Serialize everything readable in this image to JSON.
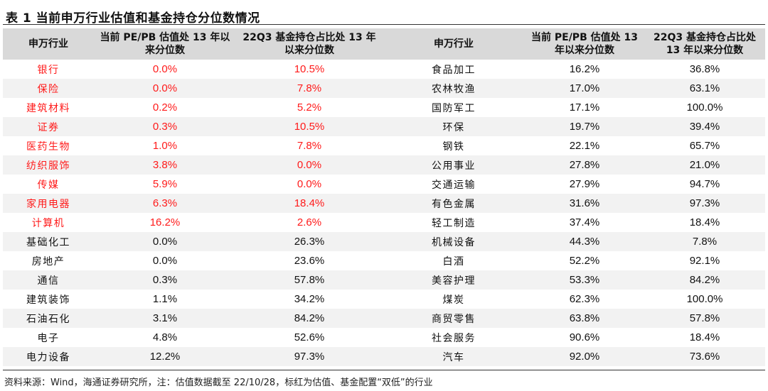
{
  "title": "表 1 当前申万行业估值和基金持仓分位数情况",
  "headers": {
    "industry": "申万行业",
    "pe_pb": "当前 PE/PB 估值处 13 年以来分位数",
    "fund": "22Q3 基金持仓占比处 13 年以来分位数"
  },
  "left_rows": [
    {
      "name": "银行",
      "pe": "0.0%",
      "fund": "10.5%",
      "red": true
    },
    {
      "name": "保险",
      "pe": "0.0%",
      "fund": "7.8%",
      "red": true
    },
    {
      "name": "建筑材料",
      "pe": "0.2%",
      "fund": "5.2%",
      "red": true
    },
    {
      "name": "证券",
      "pe": "0.3%",
      "fund": "10.5%",
      "red": true
    },
    {
      "name": "医药生物",
      "pe": "1.0%",
      "fund": "7.8%",
      "red": true
    },
    {
      "name": "纺织服饰",
      "pe": "3.8%",
      "fund": "0.0%",
      "red": true
    },
    {
      "name": "传媒",
      "pe": "5.9%",
      "fund": "0.0%",
      "red": true
    },
    {
      "name": "家用电器",
      "pe": "6.3%",
      "fund": "18.4%",
      "red": true
    },
    {
      "name": "计算机",
      "pe": "16.2%",
      "fund": "2.6%",
      "red": true
    },
    {
      "name": "基础化工",
      "pe": "0.0%",
      "fund": "26.3%",
      "red": false
    },
    {
      "name": "房地产",
      "pe": "0.0%",
      "fund": "23.6%",
      "red": false
    },
    {
      "name": "通信",
      "pe": "0.3%",
      "fund": "57.8%",
      "red": false
    },
    {
      "name": "建筑装饰",
      "pe": "1.1%",
      "fund": "34.2%",
      "red": false
    },
    {
      "name": "石油石化",
      "pe": "3.1%",
      "fund": "84.2%",
      "red": false
    },
    {
      "name": "电子",
      "pe": "4.8%",
      "fund": "52.6%",
      "red": false
    },
    {
      "name": "电力设备",
      "pe": "12.2%",
      "fund": "97.3%",
      "red": false
    }
  ],
  "right_rows": [
    {
      "name": "食品加工",
      "pe": "16.2%",
      "fund": "36.8%"
    },
    {
      "name": "农林牧渔",
      "pe": "17.0%",
      "fund": "63.1%"
    },
    {
      "name": "国防军工",
      "pe": "17.1%",
      "fund": "100.0%"
    },
    {
      "name": "环保",
      "pe": "19.7%",
      "fund": "39.4%"
    },
    {
      "name": "钢铁",
      "pe": "22.1%",
      "fund": "65.7%"
    },
    {
      "name": "公用事业",
      "pe": "27.8%",
      "fund": "21.0%"
    },
    {
      "name": "交通运输",
      "pe": "27.9%",
      "fund": "94.7%"
    },
    {
      "name": "有色金属",
      "pe": "31.6%",
      "fund": "97.3%"
    },
    {
      "name": "轻工制造",
      "pe": "37.4%",
      "fund": "18.4%"
    },
    {
      "name": "机械设备",
      "pe": "44.3%",
      "fund": "7.8%"
    },
    {
      "name": "白酒",
      "pe": "52.2%",
      "fund": "92.1%"
    },
    {
      "name": "美容护理",
      "pe": "53.3%",
      "fund": "84.2%"
    },
    {
      "name": "煤炭",
      "pe": "62.3%",
      "fund": "100.0%"
    },
    {
      "name": "商贸零售",
      "pe": "63.8%",
      "fund": "57.8%"
    },
    {
      "name": "社会服务",
      "pe": "90.6%",
      "fund": "18.4%"
    },
    {
      "name": "汽车",
      "pe": "92.0%",
      "fund": "73.6%"
    }
  ],
  "highlight_color": "#ff1a1a",
  "source": "资料来源：Wind，海通证券研究所，注：估值数据截至 22/10/28，标红为估值、基金配置“双低”的行业"
}
